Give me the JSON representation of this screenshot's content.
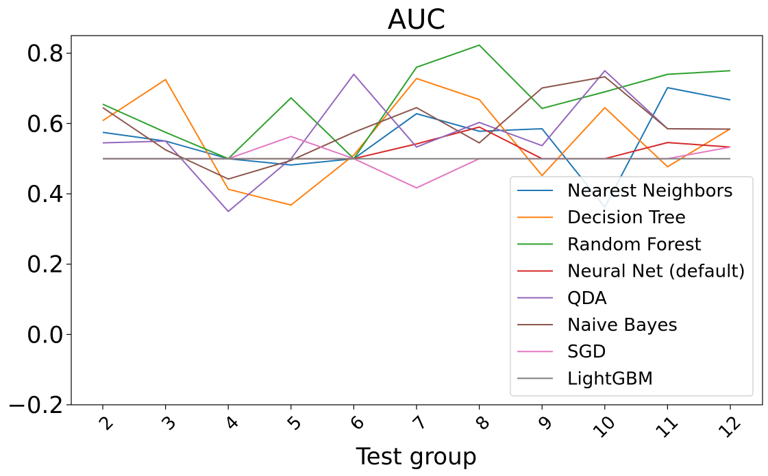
{
  "chart_data": {
    "type": "line",
    "title": "AUC",
    "xlabel": "Test group",
    "ylabel": "",
    "ylim": [
      -0.2,
      0.85
    ],
    "yticks": [
      "−0.2",
      "0.0",
      "0.2",
      "0.4",
      "0.6",
      "0.8"
    ],
    "ytick_values": [
      -0.2,
      0.0,
      0.2,
      0.4,
      0.6,
      0.8
    ],
    "categories": [
      "2",
      "3",
      "4",
      "5",
      "6",
      "7",
      "8",
      "9",
      "10",
      "11",
      "12"
    ],
    "grid": false,
    "legend_position": "lower-right",
    "series": [
      {
        "name": "Nearest Neighbors",
        "color": "#1f77b4",
        "values": [
          0.575,
          0.55,
          0.5,
          0.482,
          0.5,
          0.628,
          0.578,
          0.585,
          0.362,
          0.702,
          0.667
        ]
      },
      {
        "name": "Decision Tree",
        "color": "#ff7f0e",
        "values": [
          0.608,
          0.725,
          0.413,
          0.368,
          0.51,
          0.728,
          0.668,
          0.452,
          0.645,
          0.477,
          0.585
        ]
      },
      {
        "name": "Random Forest",
        "color": "#2ca02c",
        "values": [
          0.655,
          0.575,
          0.5,
          0.673,
          0.5,
          0.76,
          0.823,
          0.643,
          0.69,
          0.74,
          0.75
        ]
      },
      {
        "name": "Neural Net (default)",
        "color": "#d62728",
        "values": [
          0.5,
          0.5,
          0.5,
          0.5,
          0.5,
          0.542,
          0.59,
          0.5,
          0.5,
          0.546,
          0.533
        ]
      },
      {
        "name": "QDA",
        "color": "#9467bd",
        "values": [
          0.545,
          0.55,
          0.35,
          0.5,
          0.74,
          0.533,
          0.603,
          0.537,
          0.75,
          0.585,
          0.584
        ]
      },
      {
        "name": "Naive Bayes",
        "color": "#8c564b",
        "values": [
          0.645,
          0.525,
          0.442,
          0.495,
          0.575,
          0.645,
          0.545,
          0.701,
          0.733,
          0.585,
          0.584
        ]
      },
      {
        "name": "SGD",
        "color": "#e377c2",
        "values": [
          0.5,
          0.5,
          0.5,
          0.563,
          0.5,
          0.417,
          0.5,
          0.5,
          0.5,
          0.5,
          0.533
        ]
      },
      {
        "name": "LightGBM",
        "color": "#7f7f7f",
        "values": [
          0.5,
          0.5,
          0.5,
          0.5,
          0.5,
          0.5,
          0.5,
          0.5,
          0.5,
          0.5,
          0.5
        ]
      }
    ]
  }
}
